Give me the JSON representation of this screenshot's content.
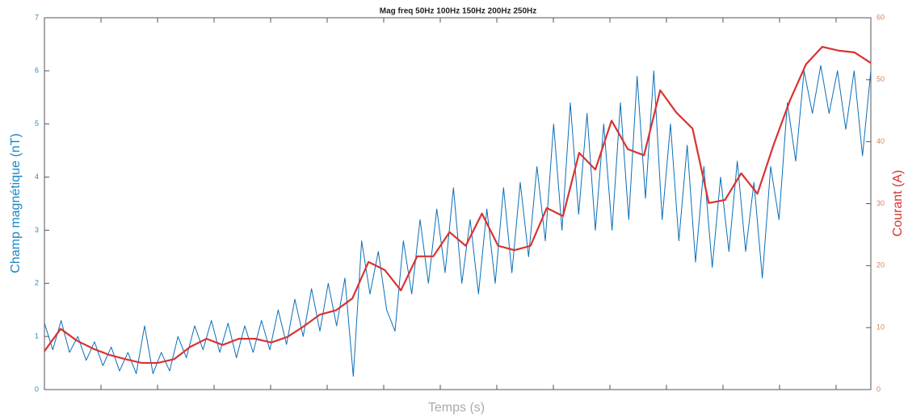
{
  "chart_data": {
    "type": "line",
    "title": "Mag freq 50Hz 100Hz 150Hz 200Hz 250Hz",
    "xlabel": "Temps (s)",
    "ylabel": "Champ magnétique (nT)",
    "y2label": "Courant (A)",
    "ylim": [
      0,
      7
    ],
    "yticks": [
      0,
      1,
      2,
      3,
      4,
      5,
      6,
      7
    ],
    "y2lim": [
      0,
      60
    ],
    "y2ticks": [
      0,
      10,
      20,
      30,
      40,
      50,
      60
    ],
    "series": [
      {
        "color": "#0a6fb8",
        "values": [
          1.25,
          0.75,
          1.3,
          0.7,
          1.0,
          0.55,
          0.9,
          0.45,
          0.8,
          0.35,
          0.7,
          0.3,
          1.2,
          0.3,
          0.7,
          0.35,
          1.0,
          0.6,
          1.2,
          0.75,
          1.3,
          0.7,
          1.25,
          0.6,
          1.2,
          0.7,
          1.3,
          0.75,
          1.5,
          0.85,
          1.7,
          1.0,
          1.9,
          1.1,
          2.0,
          1.2,
          2.1,
          0.25,
          2.8,
          1.8,
          2.6,
          1.5,
          1.1,
          2.8,
          1.8,
          3.2,
          2.0,
          3.4,
          2.2,
          3.8,
          2.0,
          3.2,
          1.8,
          3.4,
          2.0,
          3.8,
          2.2,
          3.9,
          2.5,
          4.2,
          2.8,
          5.0,
          3.0,
          5.4,
          3.3,
          5.2,
          3.0,
          5.0,
          3.0,
          5.4,
          3.2,
          5.9,
          3.6,
          6.0,
          3.2,
          5.0,
          2.8,
          4.6,
          2.4,
          4.2,
          2.3,
          4.0,
          2.6,
          4.3,
          2.6,
          3.9,
          2.1,
          4.2,
          3.2,
          5.4,
          4.3,
          6.0,
          5.2,
          6.1,
          5.2,
          6.0,
          4.9,
          6.0,
          4.4,
          6.0
        ]
      },
      {
        "color": "#d93232",
        "axis": "y2",
        "values": [
          6.2,
          9.8,
          7.9,
          6.6,
          5.6,
          4.9,
          4.3,
          4.3,
          4.9,
          6.9,
          8.2,
          7.2,
          8.2,
          8.2,
          7.6,
          8.5,
          10.2,
          12.1,
          12.8,
          14.7,
          20.6,
          19.3,
          16.0,
          21.5,
          21.5,
          25.4,
          23.2,
          28.4,
          23.2,
          22.5,
          23.2,
          29.3,
          28.0,
          38.2,
          35.5,
          43.4,
          38.8,
          37.8,
          48.3,
          44.7,
          42.1,
          30.1,
          30.6,
          34.9,
          31.6,
          39.5,
          46.6,
          52.5,
          55.3,
          54.7,
          54.4,
          52.7
        ]
      }
    ]
  }
}
